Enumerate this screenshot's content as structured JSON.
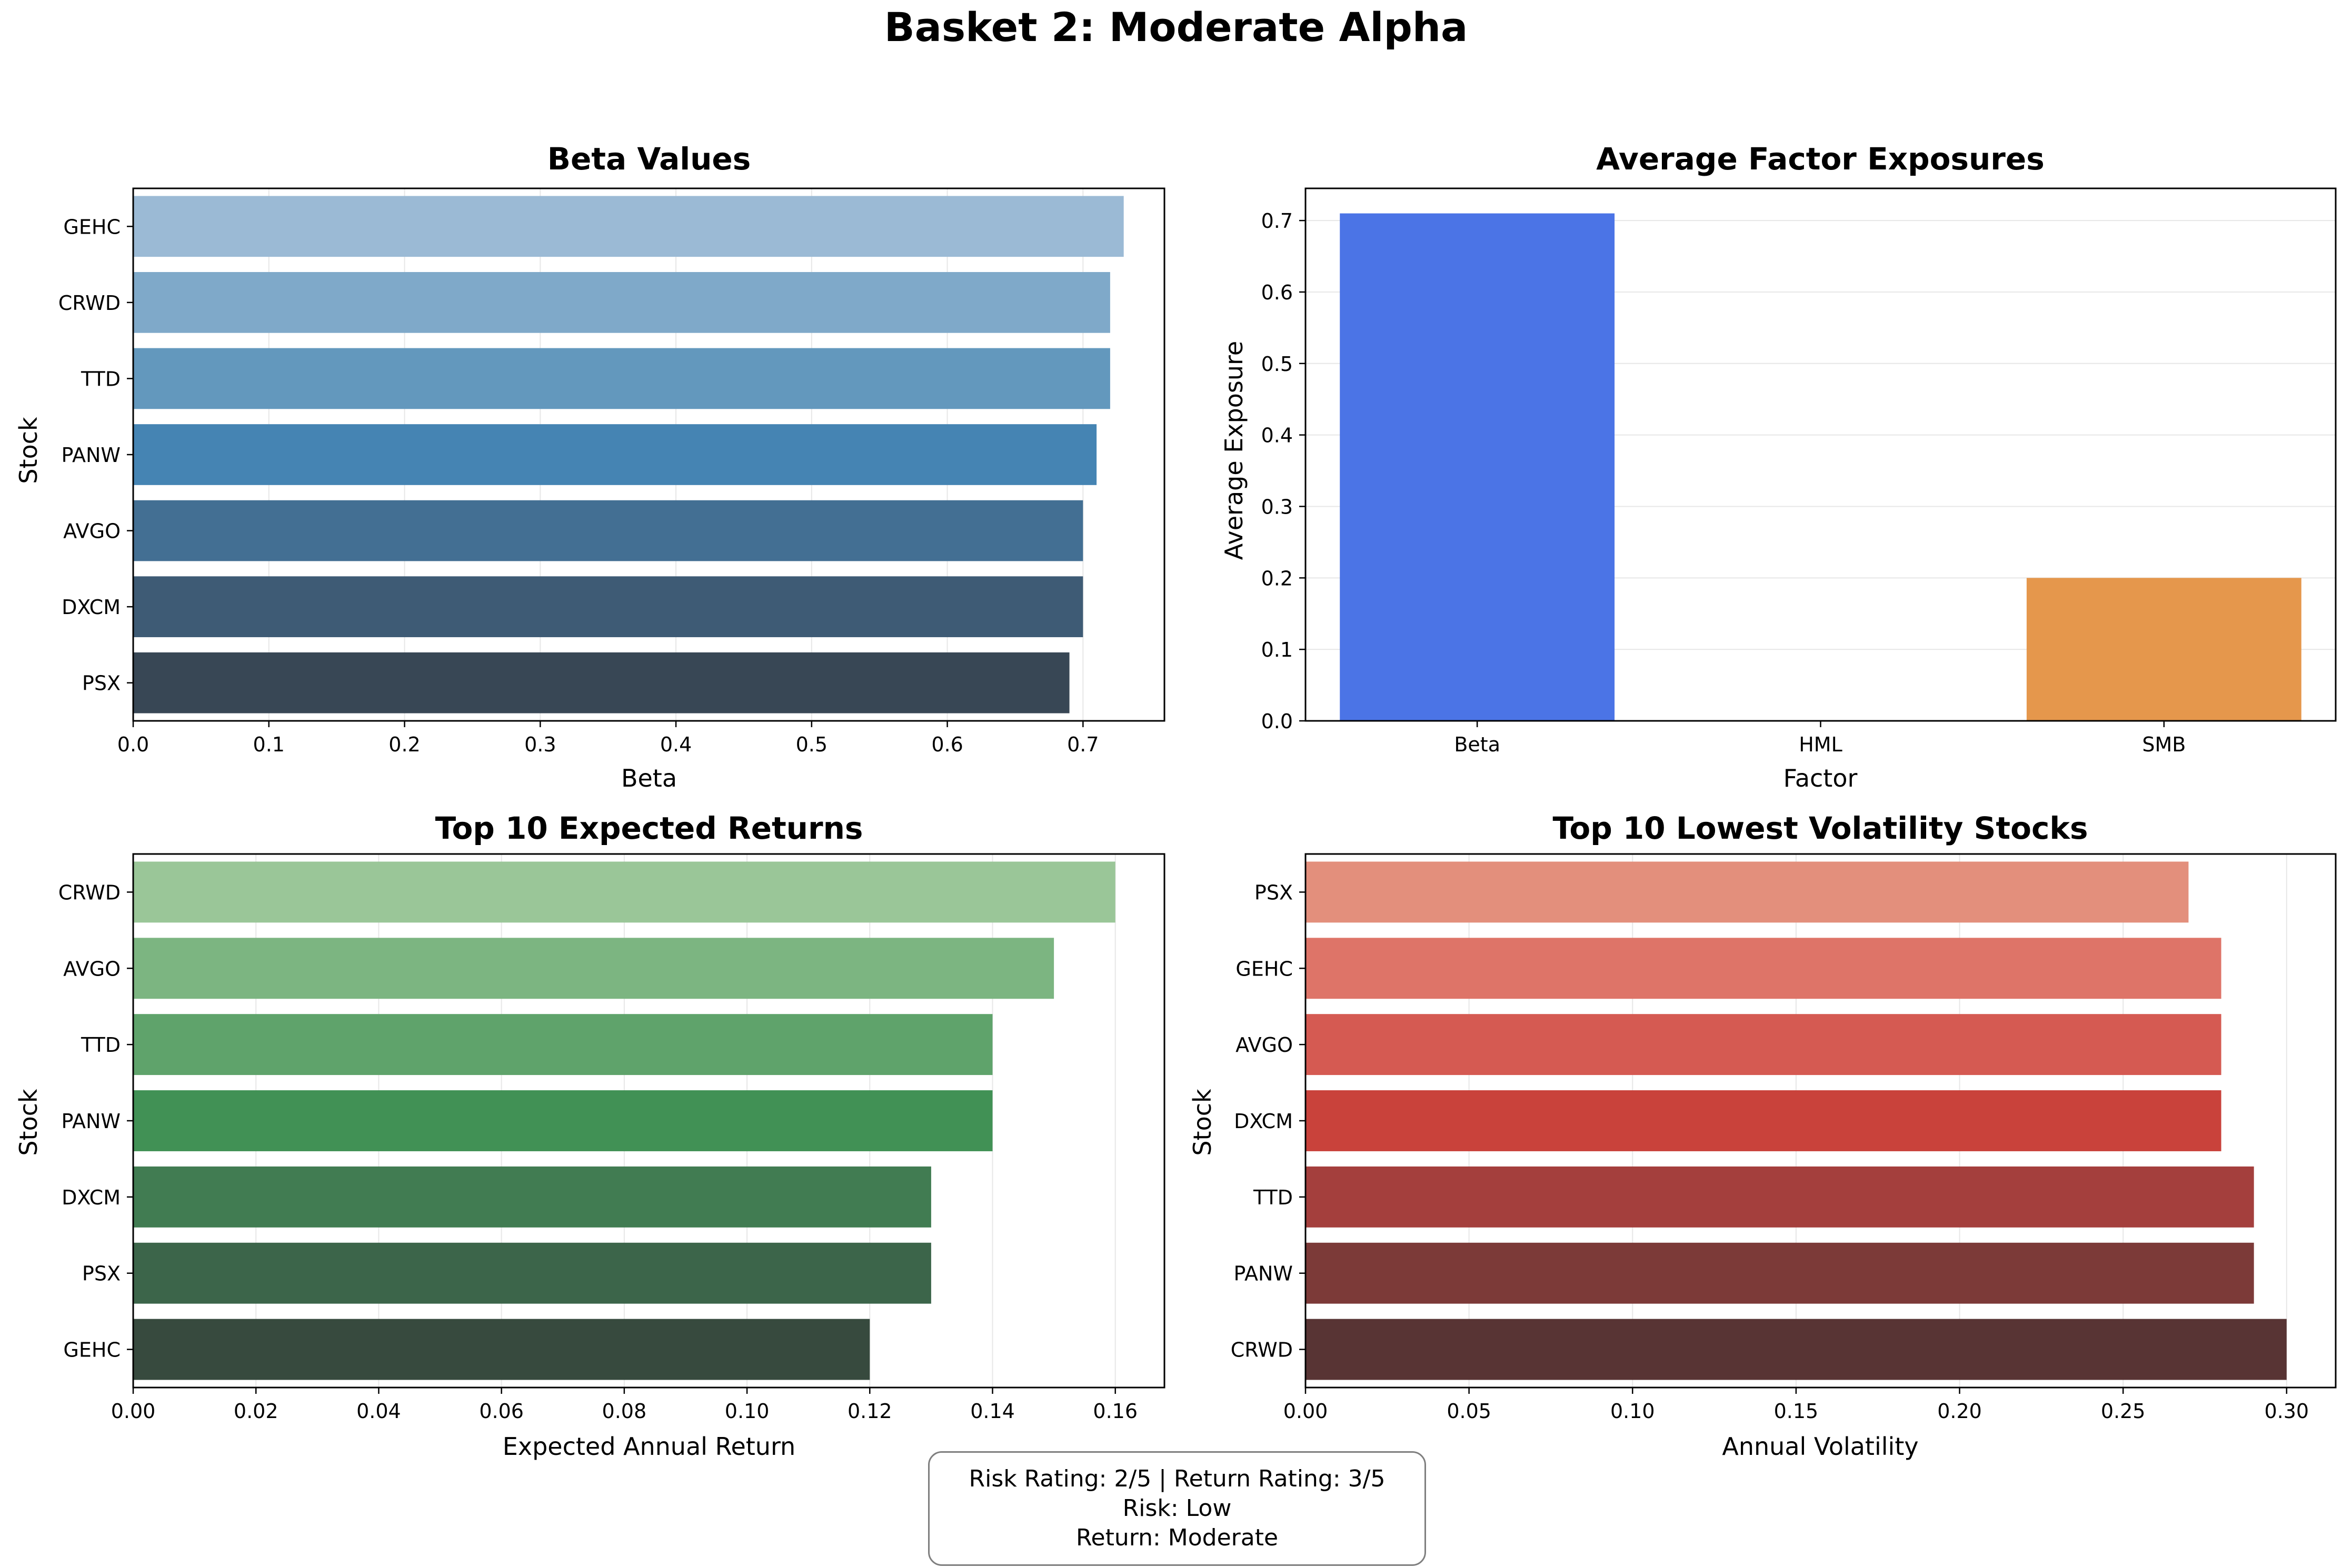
{
  "figure_title": "Basket 2: Moderate Alpha",
  "info_box": {
    "line1": "Risk Rating: 2/5 | Return Rating: 3/5",
    "line2": "Risk: Low",
    "line3": "Return: Moderate"
  },
  "chart_data": [
    {
      "id": "beta",
      "type": "bar",
      "orientation": "horizontal",
      "title": "Beta Values",
      "xlabel": "Beta",
      "ylabel": "Stock",
      "categories": [
        "GEHC",
        "CRWD",
        "TTD",
        "PANW",
        "AVGO",
        "DXCM",
        "PSX"
      ],
      "values": [
        0.73,
        0.72,
        0.72,
        0.71,
        0.7,
        0.7,
        0.69
      ],
      "colors": [
        "#9bbad5",
        "#7fa9c9",
        "#6398bd",
        "#4584b3",
        "#436f93",
        "#3e5b75",
        "#384755"
      ],
      "xlim": [
        0,
        0.76
      ],
      "xticks": [
        0.0,
        0.1,
        0.2,
        0.3,
        0.4,
        0.5,
        0.6,
        0.7
      ],
      "tick_labels": [
        "0.0",
        "0.1",
        "0.2",
        "0.3",
        "0.4",
        "0.5",
        "0.6",
        "0.7"
      ],
      "grid": "x"
    },
    {
      "id": "factors",
      "type": "bar",
      "orientation": "vertical",
      "title": "Average Factor Exposures",
      "xlabel": "Factor",
      "ylabel": "Average Exposure",
      "categories": [
        "Beta",
        "HML",
        "SMB"
      ],
      "values": [
        0.71,
        0.0,
        0.2
      ],
      "colors": [
        "#4b74e6",
        "#9b9b9b",
        "#e5974c"
      ],
      "ylim": [
        0,
        0.745
      ],
      "yticks": [
        0.0,
        0.1,
        0.2,
        0.3,
        0.4,
        0.5,
        0.6,
        0.7
      ],
      "tick_labels": [
        "0.0",
        "0.1",
        "0.2",
        "0.3",
        "0.4",
        "0.5",
        "0.6",
        "0.7"
      ],
      "grid": "y"
    },
    {
      "id": "returns",
      "type": "bar",
      "orientation": "horizontal",
      "title": "Top 10 Expected Returns",
      "xlabel": "Expected Annual Return",
      "ylabel": "Stock",
      "categories": [
        "CRWD",
        "AVGO",
        "TTD",
        "PANW",
        "DXCM",
        "PSX",
        "GEHC"
      ],
      "values": [
        0.16,
        0.15,
        0.14,
        0.14,
        0.13,
        0.13,
        0.12
      ],
      "colors": [
        "#9ac698",
        "#7cb581",
        "#5fa36b",
        "#419155",
        "#417c52",
        "#3c654a",
        "#374a3e"
      ],
      "xlim": [
        0,
        0.168
      ],
      "xticks": [
        0.0,
        0.02,
        0.04,
        0.06,
        0.08,
        0.1,
        0.12,
        0.14,
        0.16
      ],
      "tick_labels": [
        "0.00",
        "0.02",
        "0.04",
        "0.06",
        "0.08",
        "0.10",
        "0.12",
        "0.14",
        "0.16"
      ],
      "grid": "x"
    },
    {
      "id": "volatility",
      "type": "bar",
      "orientation": "horizontal",
      "title": "Top 10 Lowest Volatility Stocks",
      "xlabel": "Annual Volatility",
      "ylabel": "Stock",
      "categories": [
        "PSX",
        "GEHC",
        "AVGO",
        "DXCM",
        "TTD",
        "PANW",
        "CRWD"
      ],
      "values": [
        0.27,
        0.28,
        0.28,
        0.28,
        0.29,
        0.29,
        0.3
      ],
      "colors": [
        "#e38f7c",
        "#de7468",
        "#d55a52",
        "#c9423b",
        "#a43f3d",
        "#7c3a38",
        "#583434"
      ],
      "xlim": [
        0,
        0.315
      ],
      "xticks": [
        0.0,
        0.05,
        0.1,
        0.15,
        0.2,
        0.25,
        0.3
      ],
      "tick_labels": [
        "0.00",
        "0.05",
        "0.10",
        "0.15",
        "0.20",
        "0.25",
        "0.30"
      ],
      "grid": "x"
    }
  ]
}
